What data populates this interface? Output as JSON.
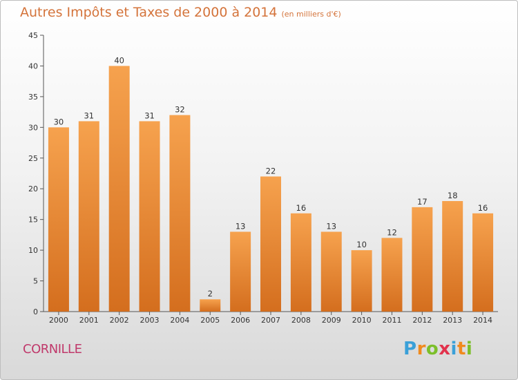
{
  "title": "Autres Impôts et Taxes de 2000 à 2014",
  "unit": "(en milliers d'€)",
  "city": "CORNILLE",
  "logo": {
    "letters": [
      "P",
      "r",
      "o",
      "x",
      "i",
      "t",
      "i"
    ],
    "colors": [
      "#3aa0d8",
      "#f08a1e",
      "#7cbf2a",
      "#e2334d",
      "#3aa0d8",
      "#f08a1e",
      "#7cbf2a"
    ]
  },
  "colors": {
    "bar_top": "#f6a24e",
    "bar_bottom": "#d46e1e",
    "title": "#d4733a",
    "city": "#c0396b"
  },
  "chart_data": {
    "type": "bar",
    "title": "Autres Impôts et Taxes de 2000 à 2014",
    "ylabel": "",
    "xlabel": "",
    "categories": [
      "2000",
      "2001",
      "2002",
      "2003",
      "2004",
      "2005",
      "2006",
      "2007",
      "2008",
      "2009",
      "2010",
      "2011",
      "2012",
      "2013",
      "2014"
    ],
    "values": [
      30,
      31,
      40,
      31,
      32,
      2,
      13,
      22,
      16,
      13,
      10,
      12,
      17,
      18,
      16
    ],
    "ylim": [
      0,
      45
    ],
    "yticks": [
      0,
      5,
      10,
      15,
      20,
      25,
      30,
      35,
      40,
      45
    ],
    "grid": false,
    "legend": "none"
  }
}
